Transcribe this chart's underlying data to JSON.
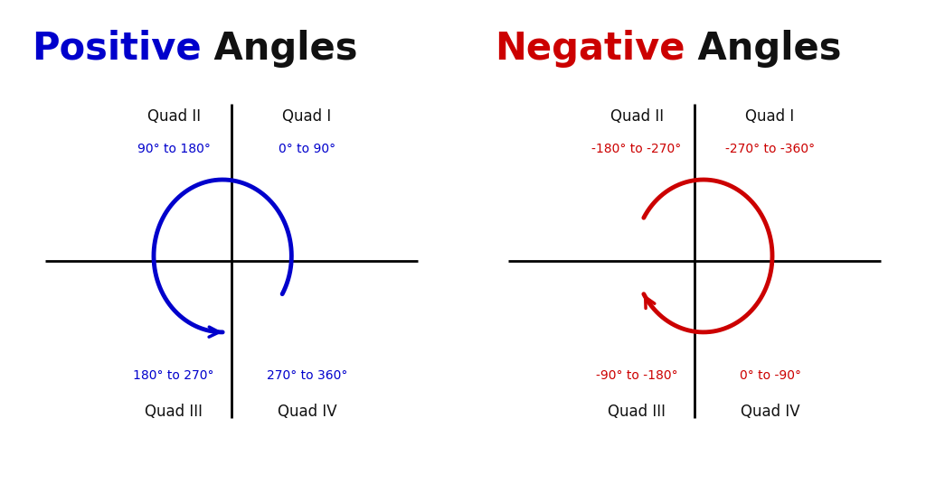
{
  "bg_color": "#ffffff",
  "left_title_colored": "Positive",
  "left_title_plain": " Angles",
  "right_title_colored": "Negative",
  "right_title_plain": " Angles",
  "title_color_left": "#0000cc",
  "title_color_right": "#cc0000",
  "title_color_plain": "#111111",
  "arrow_color_left": "#0000cc",
  "arrow_color_right": "#cc0000",
  "quad_label_color": "#111111",
  "range_color_left": "#0000cc",
  "range_color_right": "#cc0000",
  "left_quads": {
    "Q1": {
      "label": "Quad I",
      "range": "0° to 90°"
    },
    "Q2": {
      "label": "Quad II",
      "range": "90° to 180°"
    },
    "Q3": {
      "label": "Quad III",
      "range": "180° to 270°"
    },
    "Q4": {
      "label": "Quad IV",
      "range": "270° to 360°"
    }
  },
  "right_quads": {
    "Q1": {
      "label": "Quad I",
      "range": "-270° to -360°"
    },
    "Q2": {
      "label": "Quad II",
      "range": "-180° to -270°"
    },
    "Q3": {
      "label": "Quad III",
      "range": "-90° to -180°"
    },
    "Q4": {
      "label": "Quad IV",
      "range": "0° to -90°"
    }
  }
}
